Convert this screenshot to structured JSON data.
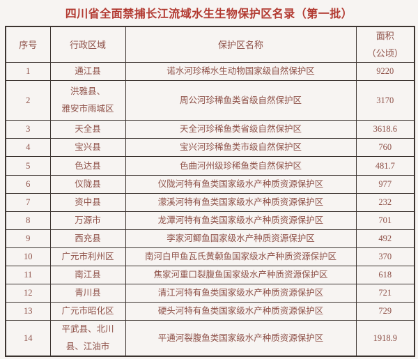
{
  "title": "四川省全面禁捕长江流域水生生物保护区名录（第一批）",
  "colors": {
    "title_text": "#b23a31",
    "cell_text": "#8e5148",
    "table_border": "#3c3430",
    "page_background": "#f7f4f2"
  },
  "table": {
    "columns": {
      "no": "序号",
      "region": "行政区域",
      "name": "保护区名称",
      "area": "面积\n（公顷）"
    },
    "rows": [
      {
        "no": "1",
        "region": "通江县",
        "name": "诺水河珍稀水生动物国家级自然保护区",
        "area": "9220"
      },
      {
        "no": "2",
        "region": "洪雅县、\n雅安市雨城区",
        "name": "周公河珍稀鱼类省级自然保护区",
        "area": "3170"
      },
      {
        "no": "3",
        "region": "天全县",
        "name": "天全河珍稀鱼类省级自然保护区",
        "area": "3618.6"
      },
      {
        "no": "4",
        "region": "宝兴县",
        "name": "宝兴河珍稀鱼类市级自然保护区",
        "area": "760"
      },
      {
        "no": "5",
        "region": "色达县",
        "name": "色曲河州级珍稀鱼类自然保护区",
        "area": "481.7"
      },
      {
        "no": "6",
        "region": "仪陇县",
        "name": "仪陇河特有鱼类国家级水产种质资源保护区",
        "area": "977"
      },
      {
        "no": "7",
        "region": "资中县",
        "name": "濛溪河特有鱼类国家级水产种质资源保护区",
        "area": "232"
      },
      {
        "no": "8",
        "region": "万源市",
        "name": "龙潭河特有鱼类国家级水产种质资源保护区",
        "area": "701"
      },
      {
        "no": "9",
        "region": "西充县",
        "name": "李家河鲫鱼国家级水产种质资源保护区",
        "area": "492"
      },
      {
        "no": "10",
        "region": "广元市利州区",
        "name": "南河白甲鱼瓦氏黄颡鱼国家级水产种质资源保护区",
        "area": "370"
      },
      {
        "no": "11",
        "region": "南江县",
        "name": "焦家河重口裂腹鱼国家级水产种质资源保护区",
        "area": "618"
      },
      {
        "no": "12",
        "region": "青川县",
        "name": "清江河特有鱼类国家级水产种质资源保护区",
        "area": "721"
      },
      {
        "no": "13",
        "region": "广元市昭化区",
        "name": "硬头河特有鱼类国家级水产种质资源保护区",
        "area": "729"
      },
      {
        "no": "14",
        "region": "平武县、北川\n县、江油市",
        "name": "平通河裂腹鱼类国家级水产种质资源保护区",
        "area": "1918.9"
      }
    ]
  }
}
